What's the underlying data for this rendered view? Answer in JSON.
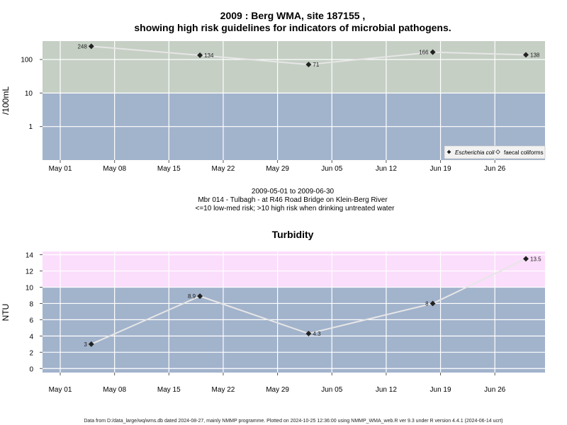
{
  "chart_data": [
    {
      "type": "line",
      "title_line1": "2009 : Berg WMA, site 187155 ,",
      "title_line2": "showing high risk guidelines for indicators of microbial pathogens.",
      "ylabel": "/100mL",
      "yscale": "log",
      "yticks": [
        1,
        10,
        100
      ],
      "ytick_labels": [
        "1",
        "10",
        "100"
      ],
      "threshold": 10,
      "xticks": [
        "May 01",
        "May 08",
        "May 15",
        "May 22",
        "May 29",
        "Jun 05",
        "Jun 12",
        "Jun 19",
        "Jun 26"
      ],
      "series": [
        {
          "name": "Escherichia coli",
          "x": [
            "2009-05-05",
            "2009-05-19",
            "2009-06-02",
            "2009-06-18",
            "2009-06-30"
          ],
          "values": [
            248,
            134,
            71,
            166,
            138
          ],
          "labels": [
            "248",
            "134",
            "71",
            "166",
            "138"
          ]
        },
        {
          "name": "faecal coliforms",
          "x": [],
          "values": []
        }
      ],
      "legend_position": "bottom-right",
      "colors": {
        "high_risk_band": "#c5cfc4",
        "low_risk_band": "#a2b3cc",
        "line": "#e6e6e6",
        "grid": "#ffffff"
      }
    },
    {
      "type": "line",
      "title": "Turbidity",
      "ylabel": "NTU",
      "ylim": [
        0,
        14
      ],
      "yticks": [
        0,
        2,
        4,
        6,
        8,
        10,
        12,
        14
      ],
      "threshold": 10,
      "xticks": [
        "May 01",
        "May 08",
        "May 15",
        "May 22",
        "May 29",
        "Jun 05",
        "Jun 12",
        "Jun 19",
        "Jun 26"
      ],
      "series": [
        {
          "x": [
            "2009-05-05",
            "2009-05-19",
            "2009-06-02",
            "2009-06-18",
            "2009-06-30"
          ],
          "values": [
            3,
            8.9,
            4.3,
            8,
            13.5
          ],
          "labels": [
            "3",
            "8.9",
            "4.3",
            "8",
            "13.5"
          ]
        }
      ],
      "colors": {
        "high_band": "#fbdefb",
        "low_band": "#a2b3cc",
        "line": "#e6e6e6",
        "grid": "#ffffff"
      }
    }
  ],
  "between": {
    "line1": "2009-05-01 to 2009-06-30",
    "line2": "Mbr 014 - Tulbagh - at R46 Road Bridge on Klein-Berg River",
    "line3": "<=10 low-med risk; >10 high risk when drinking untreated water"
  },
  "footer": "Data from D:/data_large/wq/wms.db dated 2024-08-27, mainly NMMP programme. Plotted on 2024-10-25 12:36:00 using NMMP_WMA_web.R ver 9.3 under R version 4.4.1 (2024-06-14 ucrt)"
}
